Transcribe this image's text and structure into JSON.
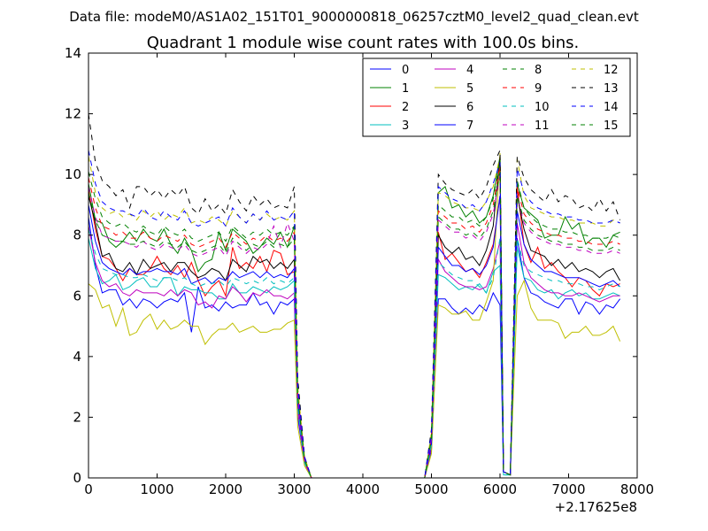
{
  "figure": {
    "suptitle": "Data file: modeM0/AS1A02_151T01_9000000818_06257cztM0_level2_quad_clean.evt"
  },
  "chart_data": {
    "type": "line",
    "title": "Quadrant 1 module wise count rates with 100.0s bins.",
    "xlabel": "",
    "ylabel": "",
    "x_offset_label": "+2.17625e8",
    "xlim": [
      0,
      8000
    ],
    "ylim": [
      0,
      14
    ],
    "xticks": [
      0,
      1000,
      2000,
      3000,
      4000,
      5000,
      6000,
      7000,
      8000
    ],
    "yticks": [
      0,
      2,
      4,
      6,
      8,
      10,
      12,
      14
    ],
    "grid": false,
    "legend_position": "top-right",
    "legend_columns": 4,
    "x": [
      0,
      100,
      200,
      300,
      400,
      500,
      600,
      700,
      800,
      900,
      1000,
      1100,
      1200,
      1300,
      1400,
      1500,
      1600,
      1700,
      1800,
      1900,
      2000,
      2100,
      2200,
      2300,
      2400,
      2500,
      2600,
      2700,
      2800,
      2900,
      3000,
      3050,
      3150,
      3250,
      4900,
      5000,
      5100,
      5200,
      5300,
      5400,
      5500,
      5600,
      5700,
      5800,
      5900,
      6000,
      6050,
      6150,
      6250,
      6350,
      6450,
      6550,
      6650,
      6750,
      6850,
      6950,
      7050,
      7150,
      7250,
      7350,
      7450,
      7550,
      7650,
      7750
    ],
    "series": [
      {
        "name": "0",
        "color": "#0000ff",
        "dash": "solid",
        "values": [
          8.6,
          7.0,
          6.1,
          6.2,
          6.2,
          5.7,
          5.9,
          5.6,
          5.9,
          5.8,
          5.6,
          5.8,
          5.9,
          5.8,
          6.1,
          4.8,
          6.3,
          5.6,
          5.7,
          5.5,
          5.8,
          5.6,
          5.7,
          5.7,
          6.1,
          5.7,
          5.8,
          5.4,
          5.8,
          5.7,
          5.9,
          2.0,
          0.5,
          0,
          0,
          0.9,
          5.9,
          5.9,
          5.6,
          5.4,
          5.6,
          5.4,
          5.7,
          5.5,
          6.1,
          5.7,
          0.2,
          0.1,
          7.9,
          6.6,
          6.1,
          6.0,
          5.8,
          5.7,
          5.6,
          5.9,
          5.9,
          5.4,
          5.8,
          5.7,
          5.4,
          5.7,
          5.6,
          5.9
        ]
      },
      {
        "name": "1",
        "color": "#008000",
        "dash": "solid",
        "values": [
          9.7,
          8.5,
          8.4,
          7.8,
          7.6,
          7.8,
          8.1,
          7.8,
          8.2,
          7.9,
          7.8,
          8.2,
          7.7,
          7.4,
          7.9,
          7.5,
          6.8,
          7.1,
          7.2,
          8.1,
          7.5,
          8.2,
          8.0,
          7.8,
          7.4,
          7.6,
          7.9,
          7.7,
          8.1,
          7.6,
          8.3,
          2.7,
          0.6,
          0,
          0,
          1.4,
          9.4,
          9.6,
          8.9,
          9.0,
          8.6,
          8.8,
          8.4,
          8.6,
          9.3,
          10.6,
          0.2,
          0.1,
          9.7,
          8.9,
          8.7,
          8.5,
          7.9,
          8.0,
          8.0,
          8.6,
          8.2,
          8.4,
          7.7,
          7.9,
          7.9,
          7.6,
          8.0,
          8.1
        ]
      },
      {
        "name": "2",
        "color": "#ff0000",
        "dash": "solid",
        "values": [
          9.5,
          8.2,
          7.3,
          7.2,
          6.9,
          6.5,
          6.9,
          6.7,
          6.7,
          6.9,
          7.3,
          6.9,
          6.7,
          7.0,
          6.6,
          7.1,
          6.5,
          6.0,
          6.3,
          6.5,
          6.0,
          7.6,
          6.9,
          7.1,
          6.9,
          7.3,
          6.8,
          7.5,
          7.4,
          6.7,
          6.8,
          2.6,
          0.6,
          0,
          0,
          1.2,
          8.1,
          7.2,
          7.4,
          7.1,
          6.8,
          6.9,
          6.6,
          7.1,
          7.7,
          9.3,
          0.2,
          0.1,
          9.6,
          7.7,
          7.1,
          7.6,
          6.9,
          7.1,
          6.8,
          6.6,
          6.3,
          6.6,
          6.5,
          6.2,
          6.0,
          6.4,
          6.3,
          6.4
        ]
      },
      {
        "name": "3",
        "color": "#00bfbf",
        "dash": "solid",
        "values": [
          7.9,
          6.9,
          6.4,
          6.5,
          6.7,
          6.2,
          6.3,
          6.5,
          6.6,
          6.3,
          6.3,
          6.6,
          6.6,
          6.0,
          6.3,
          6.2,
          6.2,
          6.1,
          6.1,
          5.9,
          5.9,
          6.4,
          6.1,
          6.1,
          6.3,
          6.2,
          6.1,
          6.3,
          6.2,
          6.3,
          6.5,
          2.2,
          0.5,
          0,
          0,
          1.0,
          6.7,
          6.6,
          6.4,
          6.2,
          6.3,
          6.2,
          6.4,
          6.1,
          6.8,
          7.0,
          0.1,
          0.1,
          7.6,
          6.6,
          6.5,
          6.2,
          6.1,
          6.2,
          5.9,
          6.1,
          6.2,
          6.0,
          6.1,
          5.9,
          5.9,
          6.0,
          6.1,
          6.0
        ]
      },
      {
        "name": "4",
        "color": "#bf00bf",
        "dash": "solid",
        "values": [
          8.3,
          7.1,
          6.5,
          6.3,
          6.4,
          6.1,
          6.0,
          6.2,
          6.1,
          6.1,
          6.1,
          6.0,
          6.2,
          6.0,
          6.2,
          6.1,
          5.7,
          5.8,
          5.6,
          6.0,
          5.9,
          6.3,
          6.1,
          5.8,
          6.1,
          6.0,
          6.2,
          6.0,
          6.0,
          5.9,
          6.1,
          2.2,
          0.5,
          0,
          0,
          1.0,
          7.2,
          6.8,
          6.6,
          6.4,
          6.3,
          6.3,
          6.2,
          6.3,
          6.9,
          7.8,
          0.2,
          0.1,
          8.4,
          7.1,
          6.6,
          6.4,
          6.2,
          6.1,
          6.1,
          6.0,
          6.0,
          6.1,
          6.0,
          5.9,
          5.8,
          5.9,
          6.0,
          6.0
        ]
      },
      {
        "name": "5",
        "color": "#bfbf00",
        "dash": "solid",
        "values": [
          6.4,
          6.2,
          5.6,
          5.7,
          5.0,
          5.6,
          4.7,
          4.8,
          5.2,
          5.4,
          4.9,
          5.2,
          4.9,
          5.0,
          5.2,
          5.0,
          5.0,
          4.4,
          4.7,
          4.9,
          4.9,
          5.1,
          4.8,
          4.9,
          5.0,
          4.8,
          4.8,
          4.9,
          4.9,
          5.1,
          5.2,
          1.7,
          0.4,
          0,
          0,
          0.8,
          5.7,
          5.6,
          5.4,
          5.4,
          5.5,
          5.2,
          5.2,
          5.8,
          6.5,
          10.7,
          0.2,
          0.1,
          6.0,
          6.5,
          5.6,
          5.2,
          5.2,
          5.2,
          5.1,
          4.6,
          4.8,
          4.8,
          5.0,
          4.7,
          4.7,
          4.8,
          5.0,
          4.5
        ]
      },
      {
        "name": "6",
        "color": "#000000",
        "dash": "solid",
        "values": [
          9.3,
          8.4,
          7.3,
          7.4,
          6.9,
          6.8,
          7.1,
          6.7,
          7.2,
          6.9,
          7.0,
          7.1,
          6.8,
          7.1,
          7.1,
          6.8,
          6.6,
          6.7,
          6.9,
          6.8,
          6.5,
          7.2,
          7.0,
          6.8,
          7.3,
          7.1,
          7.2,
          6.9,
          7.1,
          6.9,
          7.2,
          2.6,
          0.6,
          0,
          0,
          1.2,
          8.0,
          7.6,
          7.4,
          7.6,
          7.2,
          7.3,
          7.0,
          7.5,
          8.3,
          10.6,
          0.2,
          0.1,
          9.3,
          8.2,
          7.5,
          7.4,
          7.3,
          7.0,
          7.2,
          6.9,
          7.1,
          6.8,
          6.9,
          6.8,
          6.6,
          6.8,
          6.9,
          6.5
        ]
      },
      {
        "name": "7",
        "color": "#0000ff",
        "dash": "solid",
        "values": [
          9.0,
          7.8,
          7.1,
          6.9,
          6.8,
          6.7,
          6.9,
          6.7,
          6.8,
          6.8,
          6.9,
          6.8,
          6.8,
          6.7,
          6.9,
          6.4,
          6.5,
          6.6,
          6.4,
          6.6,
          6.5,
          6.8,
          6.6,
          6.7,
          6.8,
          6.6,
          6.8,
          6.6,
          6.7,
          6.6,
          6.9,
          2.5,
          0.6,
          0,
          0,
          1.1,
          7.6,
          7.3,
          7.0,
          7.0,
          6.8,
          6.9,
          6.7,
          7.0,
          7.6,
          9.3,
          0.2,
          0.1,
          8.8,
          7.7,
          7.2,
          7.0,
          6.8,
          6.8,
          6.7,
          6.6,
          6.6,
          6.6,
          6.5,
          6.4,
          6.3,
          6.4,
          6.5,
          6.3
        ]
      },
      {
        "name": "8",
        "color": "#008000",
        "dash": "dashed",
        "values": [
          10.1,
          9.2,
          8.6,
          8.4,
          8.3,
          8.4,
          8.2,
          8.1,
          8.3,
          8.1,
          8.0,
          8.3,
          8.1,
          8.0,
          8.2,
          7.9,
          7.8,
          7.9,
          8.0,
          8.1,
          7.8,
          8.3,
          8.1,
          7.9,
          8.1,
          8.0,
          8.2,
          8.0,
          8.1,
          8.0,
          8.3,
          2.8,
          0.6,
          0,
          0,
          1.4,
          9.0,
          8.8,
          8.6,
          8.6,
          8.4,
          8.5,
          8.3,
          8.6,
          9.2,
          10.5,
          0.2,
          0.1,
          9.8,
          8.9,
          8.6,
          8.4,
          8.3,
          8.2,
          8.2,
          8.1,
          8.1,
          8.0,
          8.0,
          7.9,
          7.9,
          7.9,
          8.0,
          7.9
        ]
      },
      {
        "name": "9",
        "color": "#ff0000",
        "dash": "dashed",
        "values": [
          9.9,
          8.9,
          8.3,
          8.2,
          8.0,
          8.1,
          7.9,
          7.9,
          8.1,
          7.9,
          7.8,
          8.0,
          7.9,
          7.8,
          8.0,
          7.7,
          7.6,
          7.7,
          7.8,
          7.9,
          7.6,
          8.1,
          7.9,
          7.7,
          7.9,
          7.8,
          8.0,
          7.8,
          7.9,
          7.8,
          8.1,
          2.8,
          0.6,
          0,
          0,
          1.3,
          8.8,
          8.6,
          8.4,
          8.4,
          8.2,
          8.3,
          8.1,
          8.4,
          9.0,
          10.3,
          0.2,
          0.1,
          9.6,
          8.7,
          8.4,
          8.2,
          8.1,
          8.0,
          8.0,
          7.9,
          7.9,
          7.8,
          7.8,
          7.7,
          7.7,
          7.7,
          7.8,
          7.7
        ]
      },
      {
        "name": "10",
        "color": "#00bfbf",
        "dash": "dashed",
        "values": [
          8.2,
          7.4,
          6.9,
          6.8,
          6.7,
          6.7,
          6.6,
          6.6,
          6.7,
          6.6,
          6.5,
          6.6,
          6.6,
          6.5,
          6.6,
          6.4,
          6.3,
          6.4,
          6.4,
          6.5,
          6.3,
          6.6,
          6.5,
          6.4,
          6.5,
          6.4,
          6.6,
          6.4,
          6.5,
          6.4,
          6.6,
          2.3,
          0.5,
          0,
          0,
          1.1,
          7.1,
          6.9,
          6.7,
          6.6,
          6.5,
          6.5,
          6.3,
          6.1,
          6.6,
          7.9,
          0.1,
          0.1,
          7.9,
          7.0,
          6.8,
          6.7,
          6.6,
          6.5,
          6.5,
          6.4,
          6.4,
          6.4,
          6.3,
          6.3,
          6.2,
          6.3,
          6.4,
          6.3
        ]
      },
      {
        "name": "11",
        "color": "#bf00bf",
        "dash": "dashed",
        "values": [
          9.6,
          8.6,
          8.0,
          7.9,
          7.8,
          7.8,
          7.7,
          7.6,
          7.8,
          7.6,
          7.5,
          7.7,
          7.6,
          7.5,
          7.7,
          7.4,
          7.3,
          7.4,
          7.5,
          7.6,
          7.3,
          7.8,
          7.6,
          7.4,
          7.6,
          7.5,
          7.7,
          8.3,
          7.6,
          8.4,
          7.8,
          2.7,
          0.6,
          0,
          0,
          1.3,
          8.5,
          8.3,
          8.1,
          8.1,
          7.9,
          8.0,
          7.8,
          8.1,
          8.7,
          10.0,
          0.2,
          0.1,
          9.3,
          8.4,
          8.1,
          7.9,
          7.8,
          7.7,
          7.7,
          7.6,
          7.6,
          7.5,
          7.5,
          7.4,
          7.4,
          7.4,
          7.5,
          7.4
        ]
      },
      {
        "name": "12",
        "color": "#bfbf00",
        "dash": "dashed",
        "values": [
          10.6,
          9.4,
          8.9,
          8.7,
          8.8,
          8.6,
          8.7,
          8.5,
          8.8,
          8.6,
          8.8,
          8.5,
          8.7,
          8.6,
          8.9,
          8.4,
          8.5,
          8.4,
          8.6,
          8.5,
          8.3,
          8.8,
          8.6,
          8.4,
          8.7,
          8.5,
          8.7,
          8.5,
          8.6,
          8.5,
          8.8,
          3.0,
          0.7,
          0,
          0,
          1.5,
          9.4,
          9.3,
          9.1,
          9.0,
          8.9,
          8.9,
          8.8,
          9.1,
          9.6,
          10.6,
          0.2,
          0.1,
          10.5,
          9.3,
          8.9,
          8.8,
          8.7,
          8.6,
          8.6,
          8.5,
          8.5,
          8.4,
          8.4,
          8.4,
          8.3,
          8.3,
          8.5,
          8.4
        ]
      },
      {
        "name": "13",
        "color": "#000000",
        "dash": "dashed",
        "values": [
          12.0,
          10.4,
          9.8,
          9.6,
          9.3,
          9.5,
          8.9,
          9.6,
          9.6,
          9.3,
          9.5,
          9.2,
          9.5,
          9.3,
          9.6,
          8.9,
          8.7,
          9.2,
          8.8,
          9.0,
          8.7,
          9.5,
          9.1,
          8.8,
          9.3,
          9.0,
          9.2,
          8.9,
          9.0,
          8.9,
          9.6,
          3.3,
          0.7,
          0,
          0,
          1.6,
          10.0,
          9.7,
          9.5,
          9.4,
          9.3,
          9.5,
          9.2,
          9.6,
          10.3,
          10.8,
          0.2,
          0.1,
          10.6,
          9.9,
          9.5,
          9.3,
          9.1,
          9.5,
          9.1,
          9.3,
          9.2,
          8.9,
          9.0,
          8.8,
          9.2,
          8.8,
          9.1,
          8.5
        ]
      },
      {
        "name": "14",
        "color": "#0000ff",
        "dash": "dashed",
        "values": [
          10.8,
          9.7,
          9.1,
          8.9,
          8.8,
          8.8,
          8.7,
          8.6,
          8.9,
          8.6,
          8.5,
          8.8,
          8.6,
          8.5,
          8.8,
          8.4,
          8.3,
          8.4,
          8.5,
          8.6,
          8.3,
          8.9,
          8.6,
          8.4,
          8.7,
          8.5,
          8.8,
          8.5,
          8.6,
          8.5,
          8.8,
          3.0,
          0.7,
          0,
          0,
          1.5,
          9.6,
          9.4,
          9.2,
          9.1,
          8.9,
          9.0,
          8.8,
          9.1,
          9.7,
          10.4,
          0.2,
          0.1,
          10.2,
          9.4,
          9.1,
          8.9,
          8.8,
          8.7,
          8.7,
          8.6,
          8.6,
          8.5,
          8.5,
          8.4,
          8.4,
          8.4,
          8.5,
          8.4
        ]
      },
      {
        "name": "15",
        "color": "#008000",
        "dash": "dashed",
        "values": [
          9.4,
          8.5,
          8.0,
          7.9,
          7.8,
          7.8,
          7.7,
          7.7,
          7.8,
          7.7,
          7.6,
          7.8,
          7.7,
          7.6,
          7.8,
          7.5,
          7.4,
          7.5,
          7.6,
          7.7,
          7.4,
          7.9,
          7.7,
          7.5,
          7.7,
          7.6,
          7.8,
          7.6,
          7.7,
          7.6,
          7.9,
          2.7,
          0.6,
          0,
          0,
          1.3,
          8.6,
          8.4,
          8.2,
          8.2,
          8.0,
          8.1,
          7.9,
          8.2,
          8.8,
          10.1,
          0.2,
          0.1,
          9.3,
          8.5,
          8.2,
          8.0,
          7.9,
          7.8,
          7.8,
          7.7,
          7.7,
          7.6,
          7.6,
          7.5,
          7.5,
          7.5,
          7.6,
          7.5
        ]
      }
    ]
  }
}
